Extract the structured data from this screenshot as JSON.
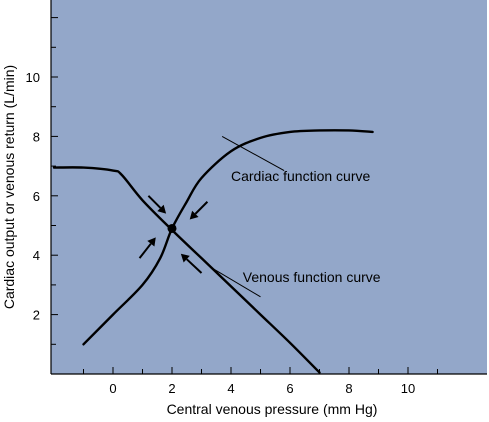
{
  "chart_data": {
    "type": "line",
    "title": "",
    "xlabel": "Central venous pressure (mm Hg)",
    "ylabel": "Cardiac output or venous return (L/min)",
    "xlim": [
      -2,
      11
    ],
    "ylim": [
      0,
      12
    ],
    "x_ticks": [
      0,
      2,
      4,
      6,
      8,
      10
    ],
    "y_ticks": [
      2,
      4,
      6,
      8,
      10
    ],
    "grid": false,
    "background_color": "#93a7c9",
    "line_color": "#000000",
    "series": [
      {
        "name": "Cardiac function curve",
        "x": [
          -1,
          0,
          1,
          1.6,
          2,
          2.5,
          3,
          4,
          5,
          6,
          7,
          8,
          8.8
        ],
        "y": [
          1,
          2,
          3,
          3.9,
          4.9,
          5.8,
          6.6,
          7.5,
          7.95,
          8.15,
          8.2,
          8.2,
          8.15
        ]
      },
      {
        "name": "Venous function curve",
        "x": [
          -2,
          -1,
          0,
          0.3,
          1,
          2,
          3,
          4,
          5,
          6,
          7
        ],
        "y": [
          6.95,
          6.95,
          6.85,
          6.7,
          5.85,
          4.85,
          3.9,
          2.95,
          2.0,
          1.05,
          0.05
        ]
      }
    ],
    "equilibrium_point": {
      "x": 2,
      "y": 4.9
    },
    "annotations": [
      {
        "text": "Cardiac function curve",
        "x": 4.0,
        "y": 6.5,
        "pointer": [
          [
            5.8,
            6.85
          ],
          [
            3.7,
            8.0
          ]
        ]
      },
      {
        "text": "Venous function curve",
        "x": 4.4,
        "y": 3.1,
        "pointer": [
          [
            5.0,
            2.6
          ],
          [
            3.3,
            3.6
          ]
        ]
      }
    ],
    "arrows": [
      {
        "from": [
          1.2,
          6.0
        ],
        "to": [
          1.8,
          5.4
        ]
      },
      {
        "from": [
          3.2,
          5.8
        ],
        "to": [
          2.6,
          5.2
        ]
      },
      {
        "from": [
          0.9,
          3.9
        ],
        "to": [
          1.45,
          4.6
        ]
      },
      {
        "from": [
          3.0,
          3.4
        ],
        "to": [
          2.3,
          4.05
        ]
      }
    ]
  }
}
